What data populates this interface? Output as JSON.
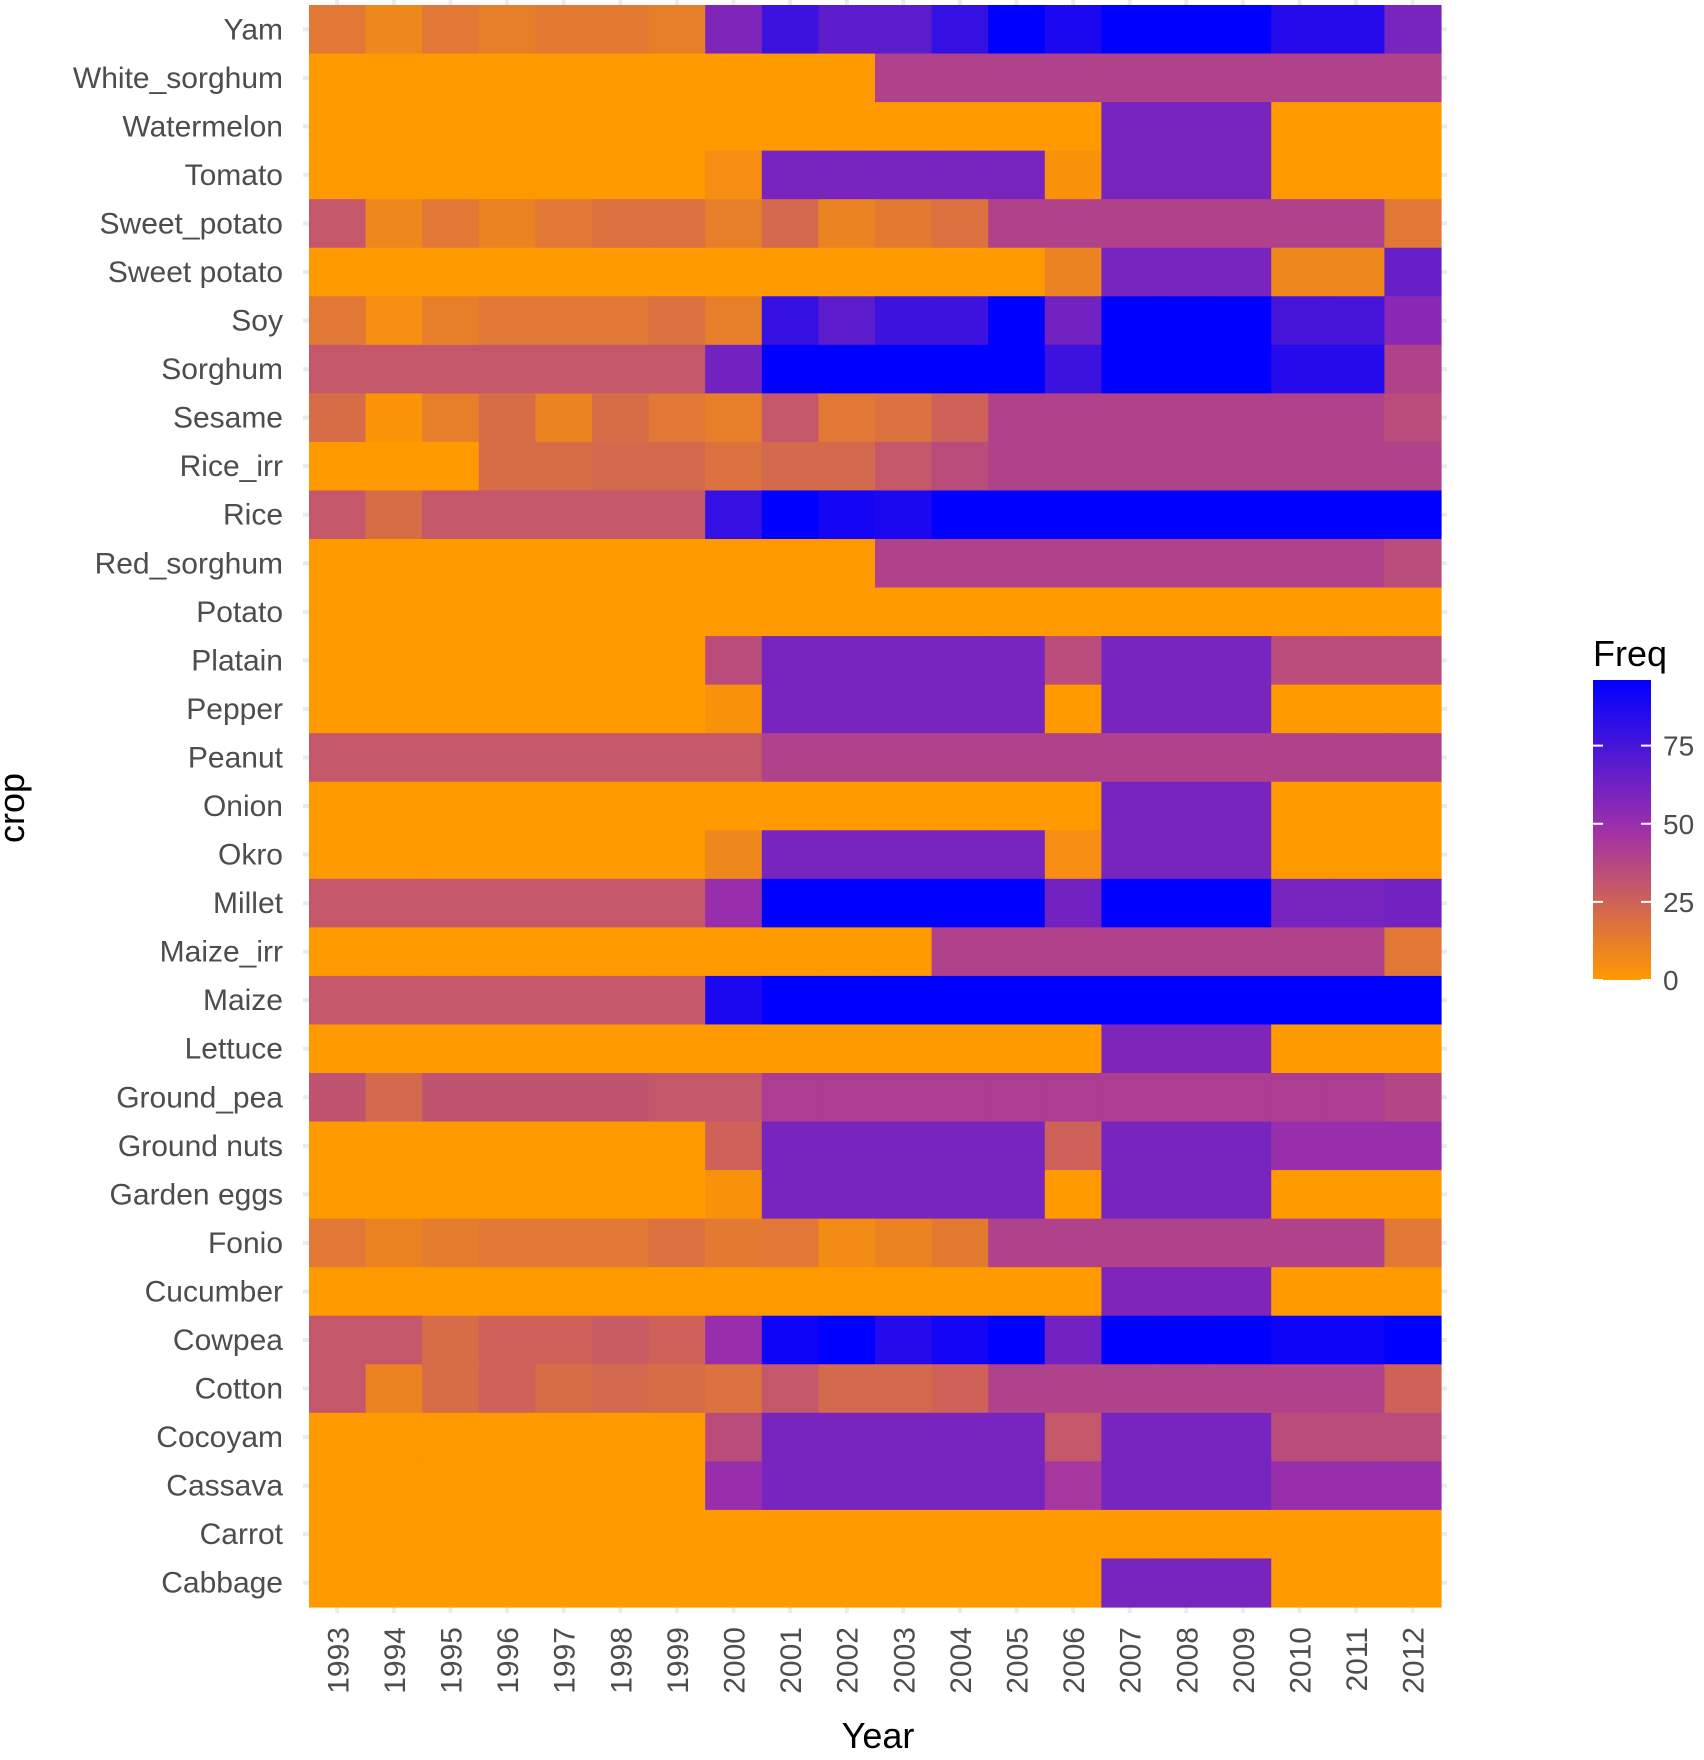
{
  "chart_data": {
    "type": "heatmap",
    "xlabel": "Year",
    "ylabel": "crop",
    "x": [
      "1993",
      "1994",
      "1995",
      "1996",
      "1997",
      "1998",
      "1999",
      "2000",
      "2001",
      "2002",
      "2003",
      "2004",
      "2005",
      "2006",
      "2007",
      "2008",
      "2009",
      "2010",
      "2011",
      "2012"
    ],
    "y": [
      "Yam",
      "White_sorghum",
      "Watermelon",
      "Tomato",
      "Sweet_potato",
      "Sweet potato",
      "Soy",
      "Sorghum",
      "Sesame",
      "Rice_irr",
      "Rice",
      "Red_sorghum",
      "Potato",
      "Platain",
      "Pepper",
      "Peanut",
      "Onion",
      "Okro",
      "Millet",
      "Maize_irr",
      "Maize",
      "Lettuce",
      "Ground_pea",
      "Ground nuts",
      "Garden eggs",
      "Fonio",
      "Cucumber",
      "Cowpea",
      "Cotton",
      "Cocoyam",
      "Cassava",
      "Carrot",
      "Cabbage"
    ],
    "values": [
      [
        15,
        8,
        15,
        12,
        14,
        14,
        12,
        58,
        78,
        68,
        68,
        80,
        96,
        88,
        96,
        96,
        96,
        85,
        85,
        60
      ],
      [
        0,
        0,
        0,
        0,
        0,
        0,
        0,
        0,
        0,
        0,
        40,
        40,
        40,
        40,
        40,
        40,
        40,
        40,
        40,
        40
      ],
      [
        0,
        0,
        0,
        0,
        0,
        0,
        0,
        0,
        0,
        0,
        0,
        0,
        0,
        0,
        60,
        60,
        60,
        0,
        0,
        0
      ],
      [
        0,
        0,
        0,
        0,
        0,
        0,
        0,
        5,
        60,
        60,
        60,
        60,
        60,
        3,
        60,
        60,
        60,
        0,
        0,
        0
      ],
      [
        30,
        8,
        15,
        10,
        15,
        18,
        18,
        12,
        22,
        10,
        14,
        18,
        40,
        40,
        40,
        40,
        40,
        40,
        40,
        15
      ],
      [
        0,
        0,
        0,
        0,
        0,
        0,
        0,
        0,
        0,
        0,
        0,
        0,
        0,
        10,
        60,
        60,
        60,
        8,
        8,
        65
      ],
      [
        15,
        5,
        12,
        15,
        15,
        15,
        18,
        12,
        80,
        68,
        78,
        78,
        96,
        62,
        96,
        96,
        96,
        75,
        75,
        55
      ],
      [
        30,
        30,
        30,
        30,
        30,
        30,
        30,
        62,
        96,
        96,
        96,
        96,
        96,
        78,
        96,
        96,
        96,
        85,
        85,
        40
      ],
      [
        20,
        2,
        12,
        20,
        10,
        20,
        15,
        12,
        30,
        15,
        18,
        25,
        40,
        40,
        40,
        40,
        40,
        40,
        40,
        35
      ],
      [
        0,
        0,
        0,
        20,
        20,
        22,
        22,
        18,
        22,
        22,
        30,
        35,
        40,
        40,
        40,
        40,
        40,
        40,
        40,
        40
      ],
      [
        30,
        20,
        30,
        30,
        30,
        30,
        30,
        80,
        96,
        90,
        88,
        96,
        96,
        96,
        96,
        96,
        96,
        96,
        96,
        96
      ],
      [
        0,
        0,
        0,
        0,
        0,
        0,
        0,
        0,
        0,
        0,
        40,
        40,
        40,
        40,
        40,
        40,
        40,
        40,
        40,
        35
      ],
      [
        0,
        0,
        0,
        0,
        0,
        0,
        0,
        0,
        0,
        0,
        0,
        0,
        0,
        0,
        0,
        0,
        0,
        0,
        0,
        0
      ],
      [
        0,
        0,
        0,
        0,
        0,
        0,
        0,
        35,
        60,
        60,
        60,
        60,
        60,
        35,
        60,
        60,
        60,
        35,
        35,
        35
      ],
      [
        0,
        0,
        0,
        0,
        0,
        0,
        0,
        3,
        60,
        60,
        60,
        60,
        60,
        0,
        60,
        60,
        60,
        0,
        0,
        0
      ],
      [
        30,
        30,
        30,
        30,
        30,
        30,
        30,
        30,
        40,
        40,
        40,
        40,
        40,
        40,
        40,
        40,
        40,
        40,
        40,
        40
      ],
      [
        0,
        0,
        0,
        0,
        0,
        0,
        0,
        0,
        0,
        0,
        0,
        0,
        0,
        0,
        60,
        60,
        60,
        0,
        0,
        0
      ],
      [
        0,
        0,
        0,
        0,
        0,
        0,
        0,
        8,
        60,
        60,
        60,
        60,
        60,
        5,
        60,
        60,
        60,
        0,
        0,
        0
      ],
      [
        30,
        30,
        30,
        30,
        30,
        30,
        30,
        50,
        96,
        96,
        96,
        96,
        96,
        62,
        96,
        96,
        96,
        60,
        60,
        62
      ],
      [
        0,
        0,
        0,
        0,
        0,
        0,
        0,
        0,
        0,
        0,
        0,
        40,
        40,
        40,
        40,
        40,
        40,
        40,
        40,
        15
      ],
      [
        30,
        30,
        30,
        30,
        30,
        30,
        30,
        88,
        96,
        96,
        96,
        96,
        96,
        96,
        96,
        96,
        96,
        96,
        96,
        96
      ],
      [
        0,
        0,
        0,
        0,
        0,
        0,
        0,
        0,
        0,
        0,
        0,
        0,
        0,
        0,
        58,
        58,
        58,
        0,
        0,
        0
      ],
      [
        32,
        22,
        32,
        32,
        32,
        32,
        30,
        30,
        42,
        42,
        42,
        42,
        42,
        42,
        42,
        42,
        42,
        42,
        42,
        38
      ],
      [
        0,
        0,
        0,
        0,
        0,
        0,
        0,
        25,
        60,
        60,
        60,
        60,
        60,
        25,
        60,
        60,
        60,
        50,
        50,
        50
      ],
      [
        0,
        0,
        0,
        0,
        0,
        0,
        0,
        3,
        60,
        60,
        60,
        60,
        60,
        0,
        60,
        60,
        60,
        0,
        0,
        0
      ],
      [
        15,
        10,
        13,
        15,
        15,
        15,
        18,
        14,
        15,
        6,
        10,
        14,
        40,
        40,
        40,
        40,
        40,
        40,
        40,
        15
      ],
      [
        0,
        0,
        0,
        0,
        0,
        0,
        0,
        0,
        0,
        0,
        0,
        0,
        0,
        0,
        58,
        58,
        58,
        0,
        0,
        0
      ],
      [
        30,
        30,
        20,
        25,
        25,
        28,
        25,
        50,
        92,
        96,
        85,
        90,
        96,
        62,
        96,
        96,
        96,
        92,
        92,
        96
      ],
      [
        30,
        10,
        20,
        25,
        20,
        22,
        20,
        18,
        30,
        22,
        22,
        25,
        40,
        40,
        40,
        40,
        40,
        40,
        40,
        25
      ],
      [
        0,
        0,
        0,
        0,
        0,
        0,
        0,
        35,
        60,
        60,
        60,
        60,
        60,
        30,
        60,
        60,
        60,
        35,
        35,
        35
      ],
      [
        0,
        0,
        0,
        0,
        0,
        0,
        0,
        50,
        60,
        60,
        60,
        60,
        60,
        45,
        60,
        60,
        60,
        50,
        50,
        50
      ],
      [
        0,
        0,
        0,
        0,
        0,
        0,
        0,
        0,
        0,
        0,
        0,
        0,
        0,
        0,
        0,
        0,
        0,
        0,
        0,
        0
      ],
      [
        0,
        0,
        0,
        0,
        0,
        0,
        0,
        0,
        0,
        0,
        0,
        0,
        0,
        0,
        60,
        60,
        60,
        0,
        0,
        0
      ]
    ],
    "scale": {
      "min": 0,
      "max": 96,
      "low_color": "#FF9900",
      "mid_color": "#A030A8",
      "high_color": "#0000FF"
    },
    "legend": {
      "title": "Freq",
      "ticks": [
        0,
        25,
        50,
        75
      ],
      "position": "right"
    },
    "grid": true
  }
}
